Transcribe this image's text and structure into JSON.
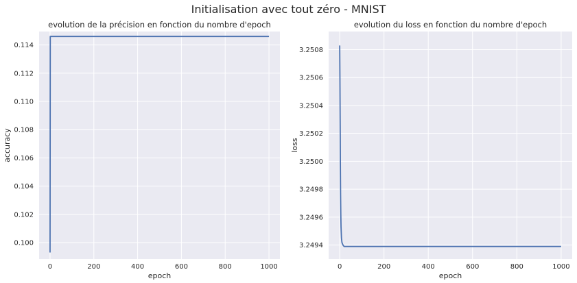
{
  "figure": {
    "suptitle": "Initialisation avec tout zéro - MNIST"
  },
  "colors": {
    "plot_background": "#eaeaf2",
    "grid": "#ffffff",
    "line": "#4c72b0",
    "text": "#262626"
  },
  "chart_data": [
    {
      "type": "line",
      "title": "evolution de la précision en fonction du nombre d'epoch",
      "xlabel": "epoch",
      "ylabel": "accuracy",
      "xlim": [
        -50,
        1050
      ],
      "ylim": [
        0.09884,
        0.11495
      ],
      "xticks": [
        0,
        200,
        400,
        600,
        800,
        1000
      ],
      "xtick_labels": [
        "0",
        "200",
        "400",
        "600",
        "800",
        "1000"
      ],
      "yticks": [
        0.1,
        0.102,
        0.104,
        0.106,
        0.108,
        0.11,
        0.112,
        0.114
      ],
      "ytick_labels": [
        "0.100",
        "0.102",
        "0.104",
        "0.106",
        "0.108",
        "0.110",
        "0.112",
        "0.114"
      ],
      "grid": true,
      "series": [
        {
          "x": [
            0,
            1,
            2,
            1000
          ],
          "y": [
            0.0993,
            0.1146,
            0.1146,
            0.1146
          ]
        }
      ]
    },
    {
      "type": "line",
      "title": "evolution du loss en fonction du nombre d'epoch",
      "xlabel": "epoch",
      "ylabel": "loss",
      "xlim": [
        -50,
        1050
      ],
      "ylim": [
        3.2493,
        3.25093
      ],
      "xticks": [
        0,
        200,
        400,
        600,
        800,
        1000
      ],
      "xtick_labels": [
        "0",
        "200",
        "400",
        "600",
        "800",
        "1000"
      ],
      "yticks": [
        3.2494,
        3.2496,
        3.2498,
        3.25,
        3.2502,
        3.2504,
        3.2506,
        3.2508
      ],
      "ytick_labels": [
        "3.2494",
        "3.2496",
        "3.2498",
        "3.2500",
        "3.2502",
        "3.2504",
        "3.2506",
        "3.2508"
      ],
      "grid": true,
      "series": [
        {
          "x": [
            0,
            1,
            2,
            3,
            4,
            5,
            6,
            8,
            10,
            12,
            15,
            20,
            25,
            30,
            40,
            60,
            100,
            200,
            400,
            600,
            800,
            1000
          ],
          "y": [
            3.25083,
            3.2506,
            3.2503,
            3.24998,
            3.24976,
            3.24962,
            3.24953,
            3.24945,
            3.24942,
            3.24941,
            3.2494,
            3.24939,
            3.24939,
            3.24939,
            3.24939,
            3.24939,
            3.24939,
            3.24939,
            3.24939,
            3.24939,
            3.24939,
            3.24939
          ]
        }
      ]
    }
  ]
}
